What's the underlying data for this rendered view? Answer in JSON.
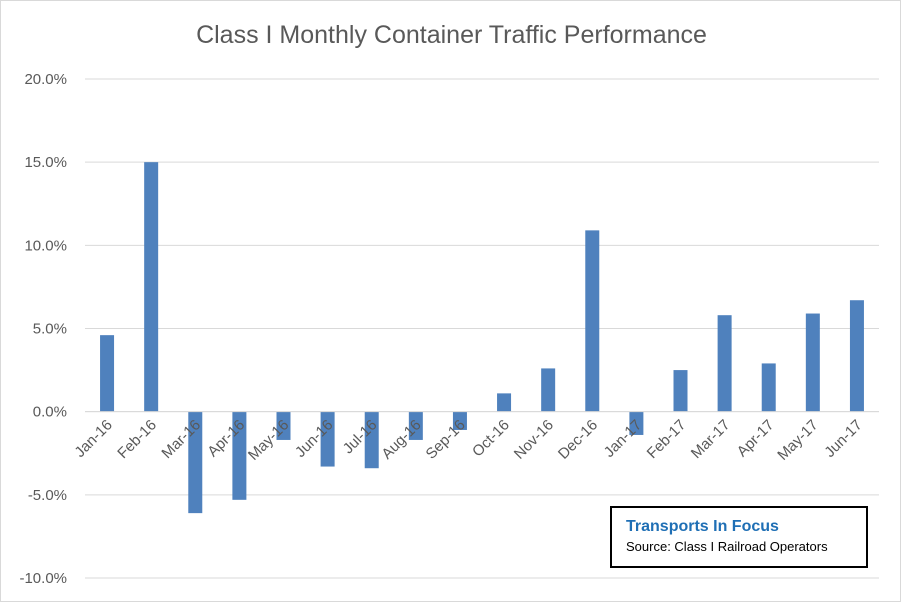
{
  "chart_data": {
    "type": "bar",
    "title": "Class I Monthly Container Traffic Performance",
    "categories": [
      "Jan-16",
      "Feb-16",
      "Mar-16",
      "Apr-16",
      "May-16",
      "Jun-16",
      "Jul-16",
      "Aug-16",
      "Sep-16",
      "Oct-16",
      "Nov-16",
      "Dec-16",
      "Jan-17",
      "Feb-17",
      "Mar-17",
      "Apr-17",
      "May-17",
      "Jun-17"
    ],
    "values": [
      4.6,
      15.0,
      -6.1,
      -5.3,
      -1.7,
      -3.3,
      -3.4,
      -1.7,
      -1.1,
      1.1,
      2.6,
      10.9,
      -1.4,
      2.5,
      5.8,
      2.9,
      5.9,
      6.7
    ],
    "ylim": [
      -10,
      20
    ],
    "yticks": [
      -10,
      -5,
      0,
      5,
      10,
      15,
      20
    ],
    "ytick_labels": [
      "-10.0%",
      "-5.0%",
      "0.0%",
      "5.0%",
      "10.0%",
      "15.0%",
      "20.0%"
    ],
    "grid": true,
    "colors": {
      "bar": "#4f81bd",
      "grid": "#d9d9d9",
      "text": "#595959"
    }
  },
  "source_box": {
    "title": "Transports  In Focus",
    "text": "Source: Class I Railroad Operators"
  }
}
